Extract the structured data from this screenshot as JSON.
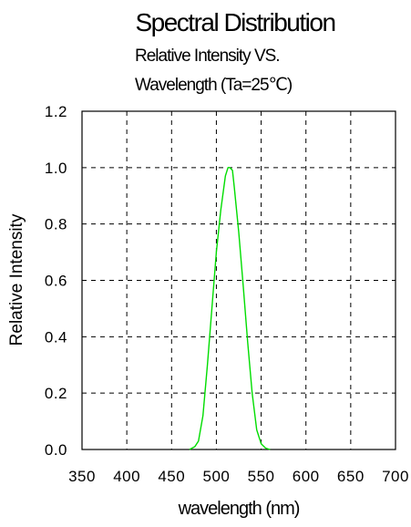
{
  "chart_data": {
    "type": "line",
    "title": "Spectral Distribution",
    "subtitle_lines": [
      "Relative Intensity VS.",
      "Wavelength (Ta=25℃)"
    ],
    "xlabel": "wavelength (nm)",
    "ylabel": "Relative Intensity",
    "xlim": [
      350,
      700
    ],
    "ylim": [
      0,
      1.2
    ],
    "x_ticks": [
      350,
      400,
      450,
      500,
      550,
      600,
      650,
      700
    ],
    "y_ticks": [
      0.0,
      0.2,
      0.4,
      0.6,
      0.8,
      1.0,
      1.2
    ],
    "x_tick_labels": [
      "350",
      "400",
      "450",
      "500",
      "550",
      "600",
      "650",
      "700"
    ],
    "y_tick_labels": [
      "0.0",
      "0.2",
      "0.4",
      "0.6",
      "0.8",
      "1.0",
      "1.2"
    ],
    "grid": "dashed",
    "series": [
      {
        "color": "#00dd00",
        "x": [
          470,
          476,
          480,
          485,
          490,
          495,
          500,
          505,
          510,
          513,
          515,
          518,
          520,
          525,
          530,
          535,
          540,
          545,
          550,
          555,
          560
        ],
        "y": [
          0.0,
          0.01,
          0.03,
          0.12,
          0.3,
          0.5,
          0.7,
          0.85,
          0.97,
          1.0,
          1.0,
          0.99,
          0.93,
          0.77,
          0.58,
          0.38,
          0.2,
          0.07,
          0.02,
          0.005,
          0.0
        ]
      }
    ]
  }
}
